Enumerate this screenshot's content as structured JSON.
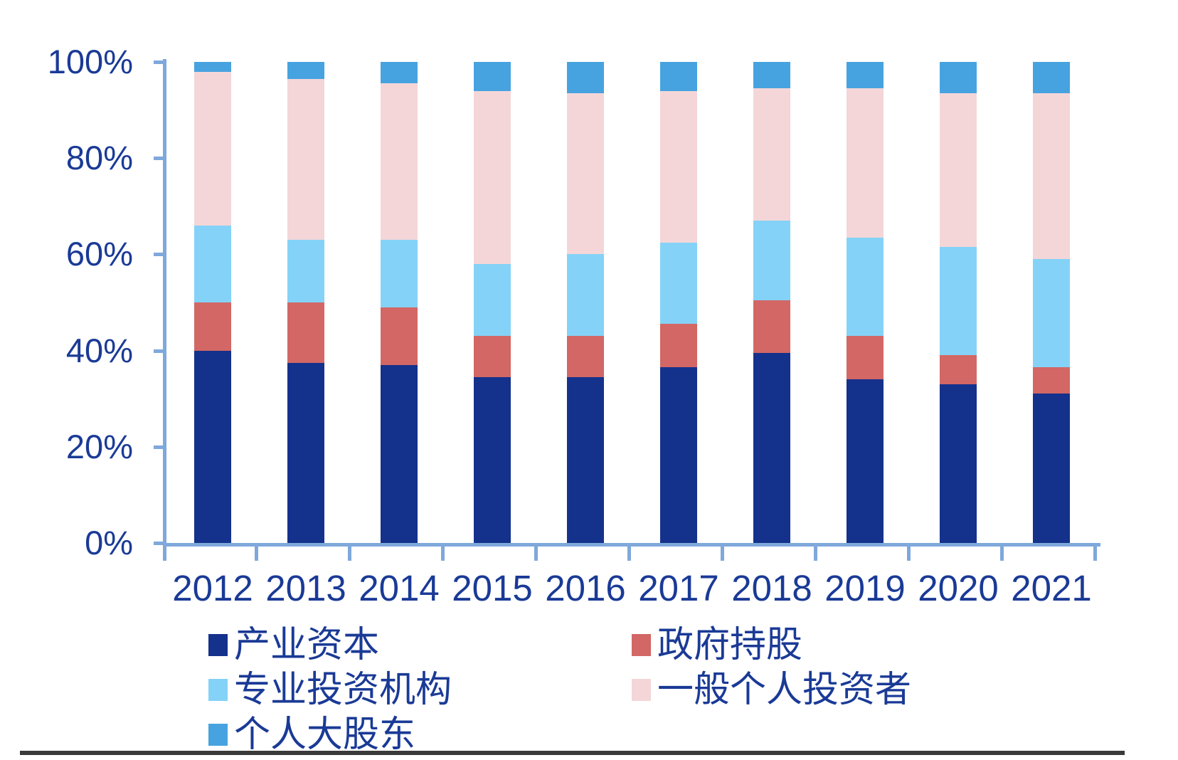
{
  "chart_data": {
    "type": "bar",
    "stacked": true,
    "stack_unit": "percent",
    "title": "",
    "xlabel": "",
    "ylabel": "",
    "categories": [
      "2012",
      "2013",
      "2014",
      "2015",
      "2016",
      "2017",
      "2018",
      "2019",
      "2020",
      "2021"
    ],
    "series": [
      {
        "name": "产业资本",
        "color": "#14318C",
        "values": [
          40,
          37.5,
          37,
          34.5,
          34.5,
          36.5,
          39.5,
          34,
          33,
          31
        ]
      },
      {
        "name": "政府持股",
        "color": "#D26765",
        "values": [
          10,
          12.5,
          12,
          8.5,
          8.5,
          9,
          11,
          9,
          6,
          5.5
        ]
      },
      {
        "name": "专业投资机构",
        "color": "#84D2F7",
        "values": [
          16,
          13,
          14,
          15,
          17,
          17,
          16.5,
          20.5,
          22.5,
          22.5
        ]
      },
      {
        "name": "一般个人投资者",
        "color": "#F4D6D8",
        "values": [
          32,
          33.5,
          32.5,
          36,
          33.5,
          31.5,
          27.5,
          31,
          32,
          34.5
        ]
      },
      {
        "name": "个人大股东",
        "color": "#47A3E0",
        "values": [
          2,
          3.5,
          4.5,
          6,
          6.5,
          6,
          5.5,
          5.5,
          6.5,
          6.5
        ]
      }
    ],
    "y_axis": {
      "min": 0,
      "max": 100,
      "tick_labels": [
        "0%",
        "20%",
        "40%",
        "60%",
        "80%",
        "100%"
      ],
      "grid": false
    },
    "legend": {
      "position": "bottom",
      "columns": 2
    }
  },
  "colors": {
    "axis": "#7FA8DB",
    "text": "#1A3A96",
    "divider": "#3A3A3A",
    "background": "#FFFFFF"
  }
}
